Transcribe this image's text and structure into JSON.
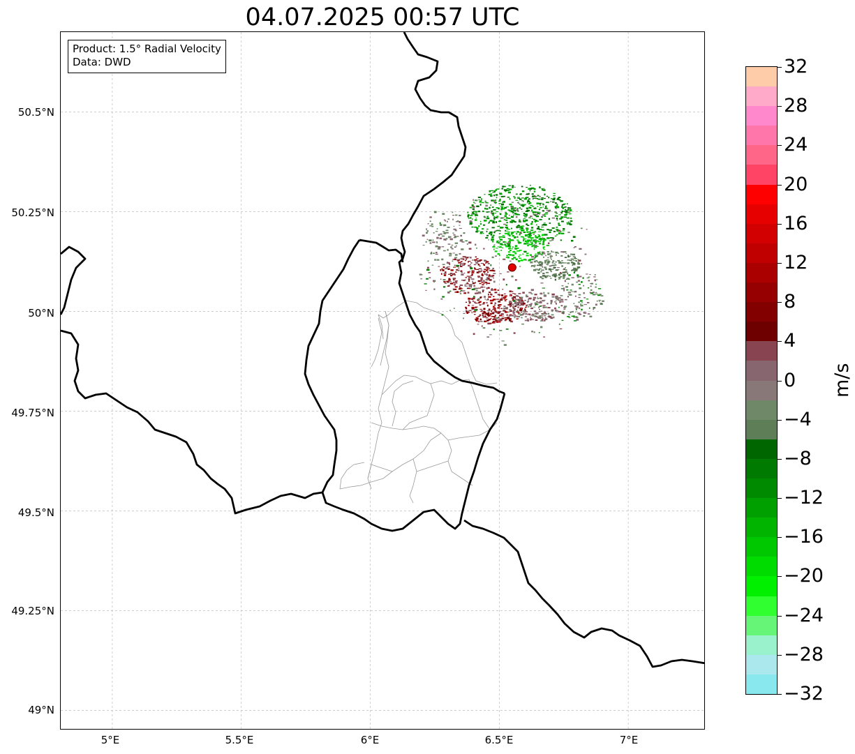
{
  "title": "04.07.2025 00:57 UTC",
  "info": {
    "product": "Product: 1.5° Radial Velocity",
    "data": "Data: DWD"
  },
  "lat_labels": [
    "50.5°N",
    "50.25°N",
    "50°N",
    "49.75°N",
    "49.5°N",
    "49.25°N",
    "49°N"
  ],
  "lon_labels": [
    "5°E",
    "5.5°E",
    "6°E",
    "6.5°E",
    "7°E"
  ],
  "colorbar": {
    "unit": "m/s",
    "tick_labels": [
      "32",
      "28",
      "24",
      "20",
      "16",
      "12",
      "8",
      "4",
      "0",
      "−4",
      "−8",
      "−12",
      "−16",
      "−20",
      "−24",
      "−28",
      "−32"
    ],
    "range": [
      -32,
      32
    ],
    "colors_top_to_bottom": [
      "#ffccaa",
      "#ffaac8",
      "#ff88cc",
      "#ff77aa",
      "#ff6688",
      "#ff4466",
      "#ff0000",
      "#e60000",
      "#d20000",
      "#c00000",
      "#aa0000",
      "#960000",
      "#820000",
      "#6e0000",
      "#884450",
      "#886670",
      "#887878",
      "#6e8868",
      "#5e7e58",
      "#006600",
      "#007a00",
      "#008a00",
      "#00a000",
      "#00b400",
      "#00c800",
      "#00dc00",
      "#00f000",
      "#30ff30",
      "#66f577",
      "#99f2cc",
      "#aae8ee",
      "#88e8ee"
    ]
  },
  "map": {
    "extent": {
      "lon": [
        4.8,
        7.3
      ],
      "lat": [
        48.95,
        50.7
      ]
    },
    "radar_site": {
      "lon": 6.55,
      "lat": 50.11
    },
    "colors": {
      "border": "#000000",
      "district": "#999999",
      "grid": "#aaaaaa",
      "site": "#e00000"
    }
  }
}
